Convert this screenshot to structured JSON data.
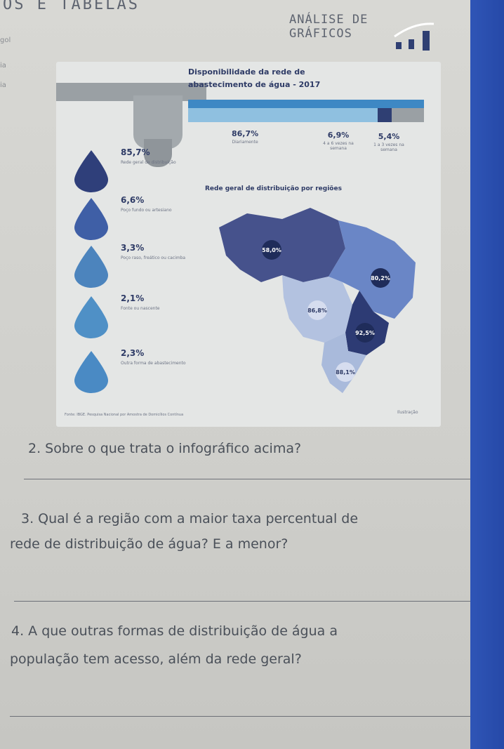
{
  "header": {
    "left_title": "OS E TABELAS",
    "right_title_line1": "ANÁLISE DE",
    "right_title_line2": "GRÁFICOS",
    "margin_notes": [
      "gol",
      "ia",
      "ia"
    ]
  },
  "infographic": {
    "title_line1": "Disponibilidade da rede de",
    "title_line2": "abastecimento de água - 2017",
    "region_title": "Rede geral de distribuição por regiões",
    "source": "Fonte: IBGE. Pesquisa Nacional por Amostra de Domicílios Contínua",
    "source_right": "Ilustração",
    "frequency": [
      {
        "value": "86,7%",
        "label": "Diariamente"
      },
      {
        "value": "6,9%",
        "label": "4 a 6 vezes na semana"
      },
      {
        "value": "5,4%",
        "label": "1 a 3 vezes na semana"
      }
    ],
    "sources": [
      {
        "value": "85,7%",
        "label": "Rede geral de distribuição"
      },
      {
        "value": "6,6%",
        "label": "Poço fundo ou artesiano"
      },
      {
        "value": "3,3%",
        "label": "Poço raso, freático ou cacimba"
      },
      {
        "value": "2,1%",
        "label": "Fonte ou nascente"
      },
      {
        "value": "2,3%",
        "label": "Outra forma de abastecimento"
      }
    ],
    "regions": [
      {
        "value": "58,0%"
      },
      {
        "value": "80,2%"
      },
      {
        "value": "86,8%"
      },
      {
        "value": "92,5%"
      },
      {
        "value": "88,1%"
      }
    ]
  },
  "questions": {
    "q2": "2. Sobre o que trata o infográfico acima?",
    "q3_line1": "3. Qual é a região com a maior taxa percentual de",
    "q3_line2": "rede de distribuição de água? E a menor?",
    "q4_line1": "4. A que outras formas de distribuição de água a",
    "q4_line2": "população tem acesso, além da rede geral?"
  },
  "colors": {
    "page": "#d3d3cf",
    "blue_edge": "#2c50b0",
    "dark_blue": "#3c4a86",
    "mid_blue": "#5f76b8",
    "light_blue": "#9fb2d8"
  }
}
